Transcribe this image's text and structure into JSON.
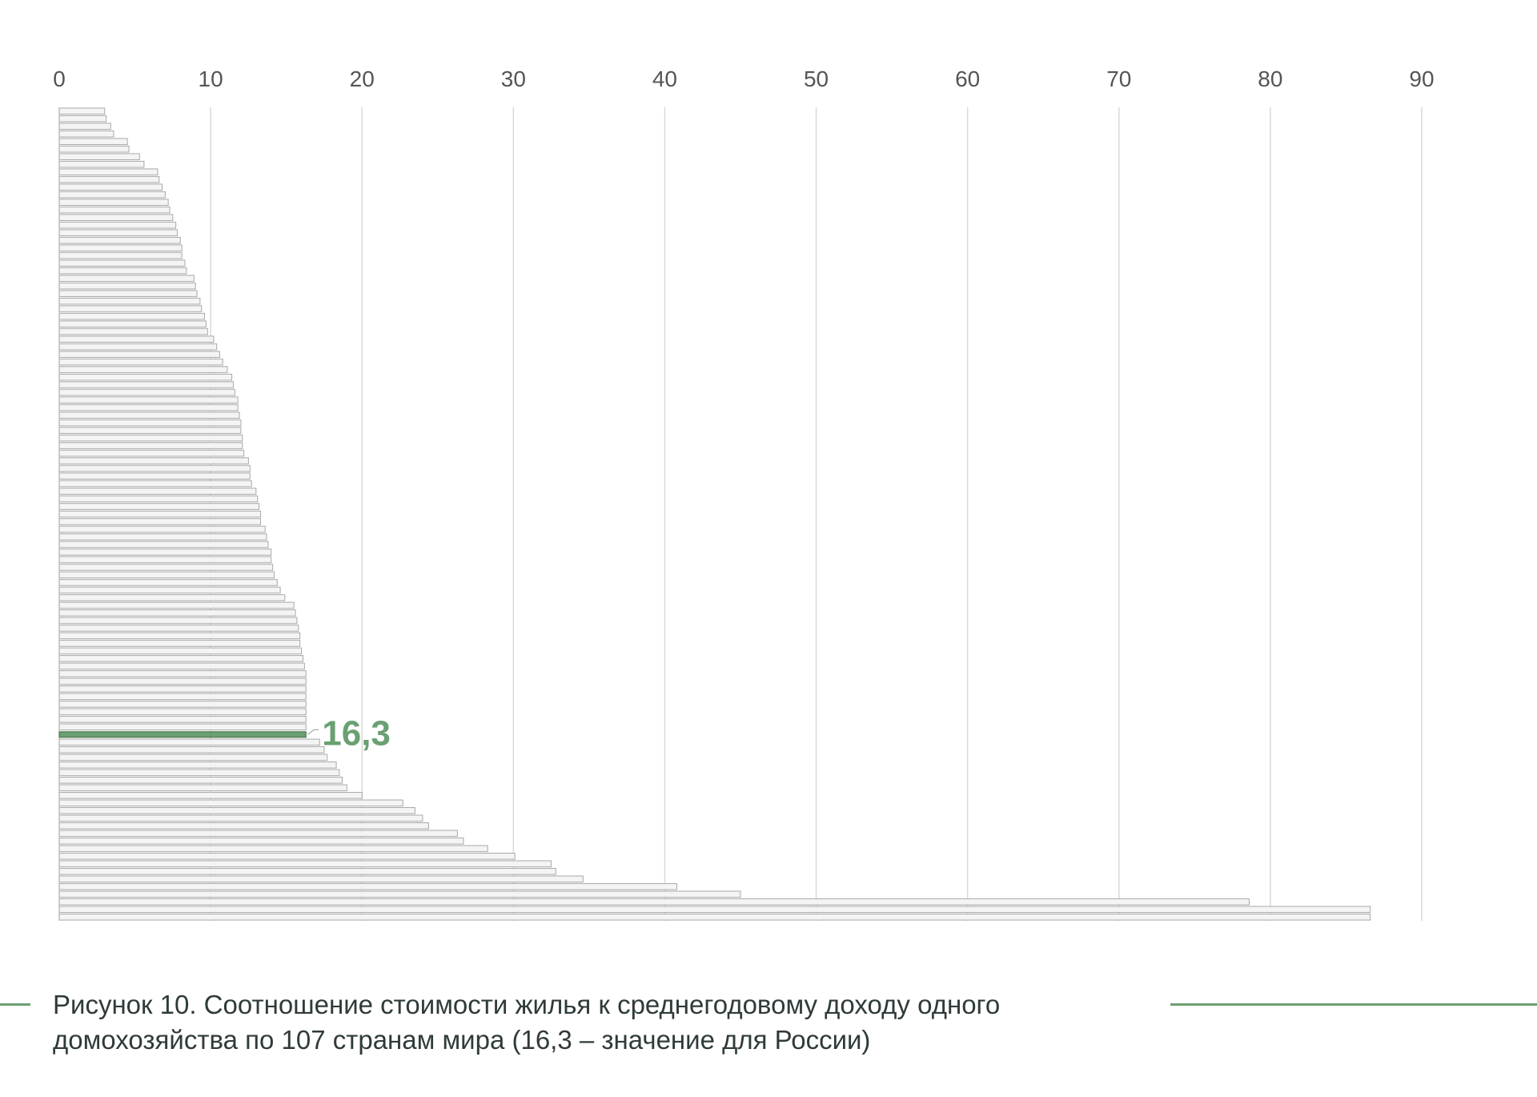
{
  "colors": {
    "bar_fill": "#f4f4f4",
    "bar_stroke": "#a9a9a9",
    "highlight": "#6aa072",
    "grid": "#d9d9d9",
    "tick_text": "#555555",
    "caption_text": "#2f3b3a"
  },
  "caption": {
    "line1": "Рисунок 10. Соотношение стоимости жилья к среднегодовому доходу одного",
    "line2": "домохозяйства по 107 странам мира (16,3 – значение для России)"
  },
  "chart_data": {
    "type": "bar",
    "orientation": "horizontal",
    "title": "",
    "xlabel": "",
    "ylabel": "",
    "xlim": [
      0,
      90
    ],
    "x_ticks": [
      "0",
      "10",
      "20",
      "30",
      "40",
      "50",
      "60",
      "70",
      "80",
      "90"
    ],
    "x_axis_position": "top",
    "grid": true,
    "legend": "none",
    "categories_shown": false,
    "sort": "ascending",
    "highlight": {
      "index": 82,
      "value": 16.3,
      "label": "16,3"
    },
    "values": [
      3.0,
      3.1,
      3.4,
      3.6,
      4.5,
      4.6,
      5.3,
      5.6,
      6.5,
      6.6,
      6.8,
      7.0,
      7.2,
      7.3,
      7.5,
      7.7,
      7.8,
      8.0,
      8.1,
      8.1,
      8.3,
      8.4,
      8.9,
      9.0,
      9.1,
      9.3,
      9.4,
      9.6,
      9.7,
      9.8,
      10.2,
      10.4,
      10.6,
      10.8,
      11.1,
      11.4,
      11.5,
      11.6,
      11.8,
      11.8,
      11.9,
      12.0,
      12.0,
      12.1,
      12.1,
      12.2,
      12.5,
      12.6,
      12.6,
      12.7,
      13.0,
      13.1,
      13.2,
      13.3,
      13.3,
      13.6,
      13.7,
      13.8,
      14.0,
      14.0,
      14.1,
      14.2,
      14.4,
      14.6,
      14.9,
      15.5,
      15.6,
      15.7,
      15.8,
      15.9,
      15.9,
      16.0,
      16.1,
      16.2,
      16.3,
      16.3,
      16.3,
      16.3,
      16.3,
      16.3,
      16.3,
      16.3,
      16.3,
      17.2,
      17.5,
      17.7,
      18.3,
      18.5,
      18.7,
      19.0,
      20.0,
      22.7,
      23.5,
      24.0,
      24.4,
      26.3,
      26.7,
      28.3,
      30.1,
      32.5,
      32.8,
      34.6,
      40.8,
      45.0,
      78.6,
      86.6,
      86.6
    ]
  }
}
